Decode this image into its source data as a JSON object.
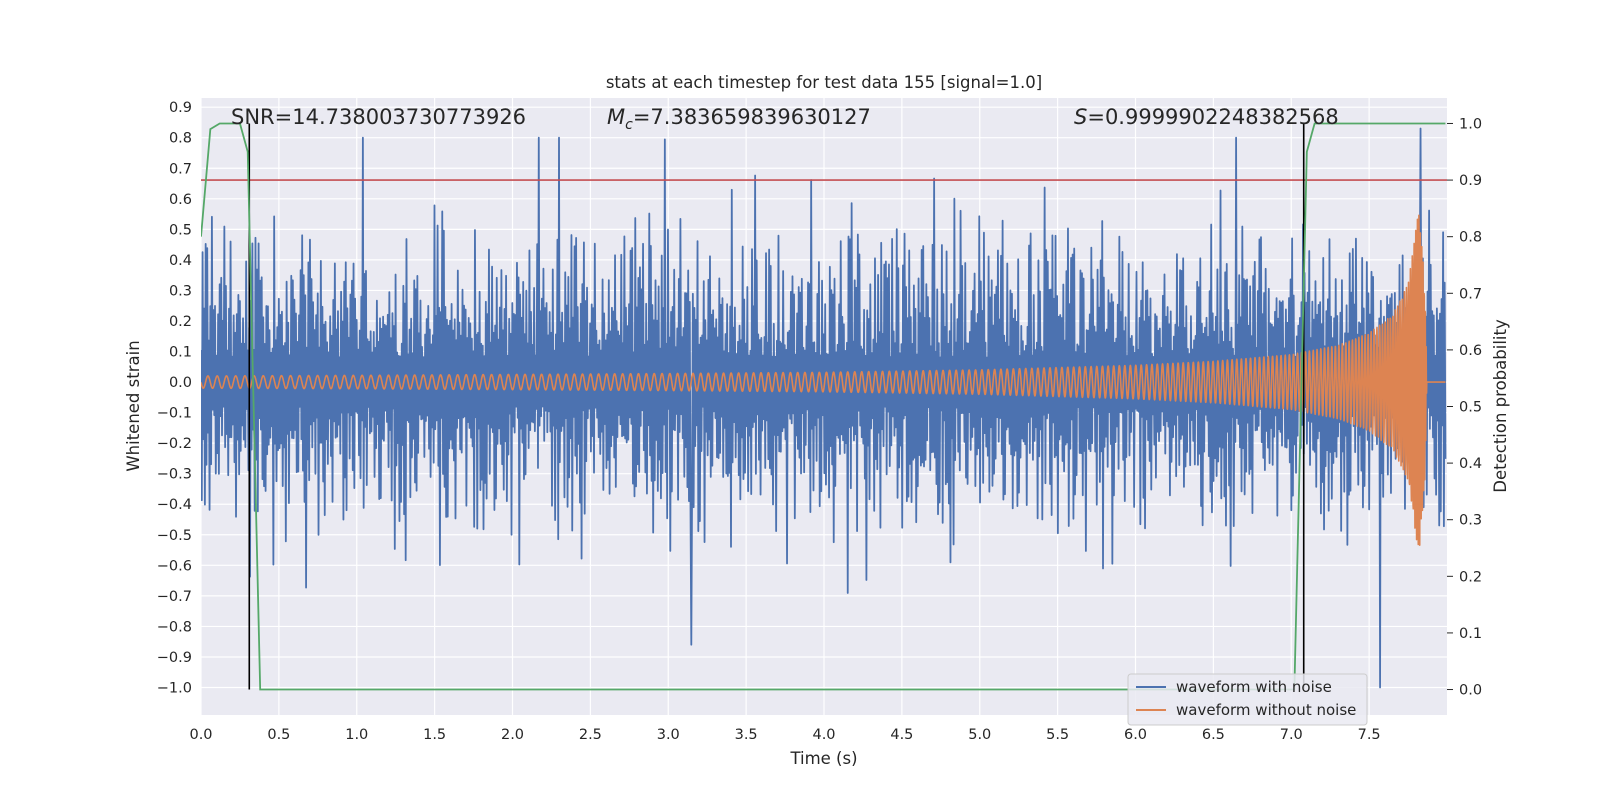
{
  "chart_data": {
    "type": "line",
    "title": "stats at each timestep for test data 155 [signal=1.0]",
    "xlabel": "Time (s)",
    "ylabel": "Whitened strain",
    "ylabel_right": "Detection probability",
    "xlim": [
      0.0,
      8.0
    ],
    "ylim": [
      -1.09,
      0.93
    ],
    "ylim_right": [
      -0.045,
      1.045
    ],
    "x_ticks": [
      0.0,
      0.5,
      1.0,
      1.5,
      2.0,
      2.5,
      3.0,
      3.5,
      4.0,
      4.5,
      5.0,
      5.5,
      6.0,
      6.5,
      7.0,
      7.5
    ],
    "x_tick_labels": [
      "0.0",
      "0.5",
      "1.0",
      "1.5",
      "2.0",
      "2.5",
      "3.0",
      "3.5",
      "4.0",
      "4.5",
      "5.0",
      "5.5",
      "6.0",
      "6.5",
      "7.0",
      "7.5"
    ],
    "y_ticks": [
      0.9,
      0.8,
      0.7,
      0.6,
      0.5,
      0.4,
      0.3,
      0.2,
      0.1,
      0.0,
      -0.1,
      -0.2,
      -0.3,
      -0.4,
      -0.5,
      -0.6,
      -0.7,
      -0.8,
      -0.9,
      -1.0
    ],
    "y_tick_labels": [
      "0.9",
      "0.8",
      "0.7",
      "0.6",
      "0.5",
      "0.4",
      "0.3",
      "0.2",
      "0.1",
      "0.0",
      "−0.1",
      "−0.2",
      "−0.3",
      "−0.4",
      "−0.5",
      "−0.6",
      "−0.7",
      "−0.8",
      "−0.9",
      "−1.0"
    ],
    "y_ticks_right": [
      1.0,
      0.9,
      0.8,
      0.7,
      0.6,
      0.5,
      0.4,
      0.3,
      0.2,
      0.1,
      0.0
    ],
    "y_tick_labels_right": [
      "1.0",
      "0.9",
      "0.8",
      "0.7",
      "0.6",
      "0.5",
      "0.4",
      "0.3",
      "0.2",
      "0.1",
      "0.0"
    ],
    "grid": true,
    "legend_position": "bottom-right",
    "annotations": {
      "snr": "SNR=14.738003730773926",
      "mc_symbol": "M",
      "mc_sub": "c",
      "mc_value": "=7.383659839630127",
      "s_symbol": "S",
      "s_value": "=0.9999902248382568"
    },
    "series": [
      {
        "name": "waveform with noise",
        "color": "#4c72b0",
        "kind": "noise",
        "x_range": [
          0.0,
          7.99
        ],
        "amplitude_envelope": [
          -0.86,
          0.8
        ],
        "peaks": [
          {
            "x": 1.04,
            "y": 0.8
          },
          {
            "x": 2.3,
            "y": 0.8
          },
          {
            "x": 3.15,
            "y": -0.86
          },
          {
            "x": 7.57,
            "y": -1.0
          },
          {
            "x": 7.83,
            "y": 0.83
          }
        ]
      },
      {
        "name": "waveform without noise",
        "color": "#dd8452",
        "kind": "chirp",
        "x": [
          0.0,
          1.0,
          2.0,
          3.0,
          4.0,
          5.0,
          6.0,
          6.5,
          7.0,
          7.3,
          7.5,
          7.65,
          7.75,
          7.82,
          7.86,
          7.87,
          7.99
        ],
        "amplitude": [
          0.02,
          0.022,
          0.025,
          0.028,
          0.032,
          0.04,
          0.055,
          0.068,
          0.09,
          0.12,
          0.16,
          0.22,
          0.32,
          0.57,
          0.3,
          0.0,
          0.0
        ]
      },
      {
        "name": "detection probability",
        "color": "#55a868",
        "axis": "right",
        "x": [
          0.0,
          0.06,
          0.12,
          0.25,
          0.3,
          0.38,
          7.02,
          7.1,
          7.15,
          7.99
        ],
        "y": [
          0.8,
          0.99,
          1.0,
          1.0,
          0.95,
          0.0,
          0.0,
          0.95,
          1.0,
          1.0
        ]
      }
    ],
    "lines": [
      {
        "type": "horizontal",
        "axis": "right",
        "y": 0.9,
        "color": "#c44e52"
      },
      {
        "type": "vertical",
        "x": 0.31,
        "color": "#000000"
      },
      {
        "type": "vertical",
        "x": 7.08,
        "color": "#000000"
      }
    ]
  }
}
